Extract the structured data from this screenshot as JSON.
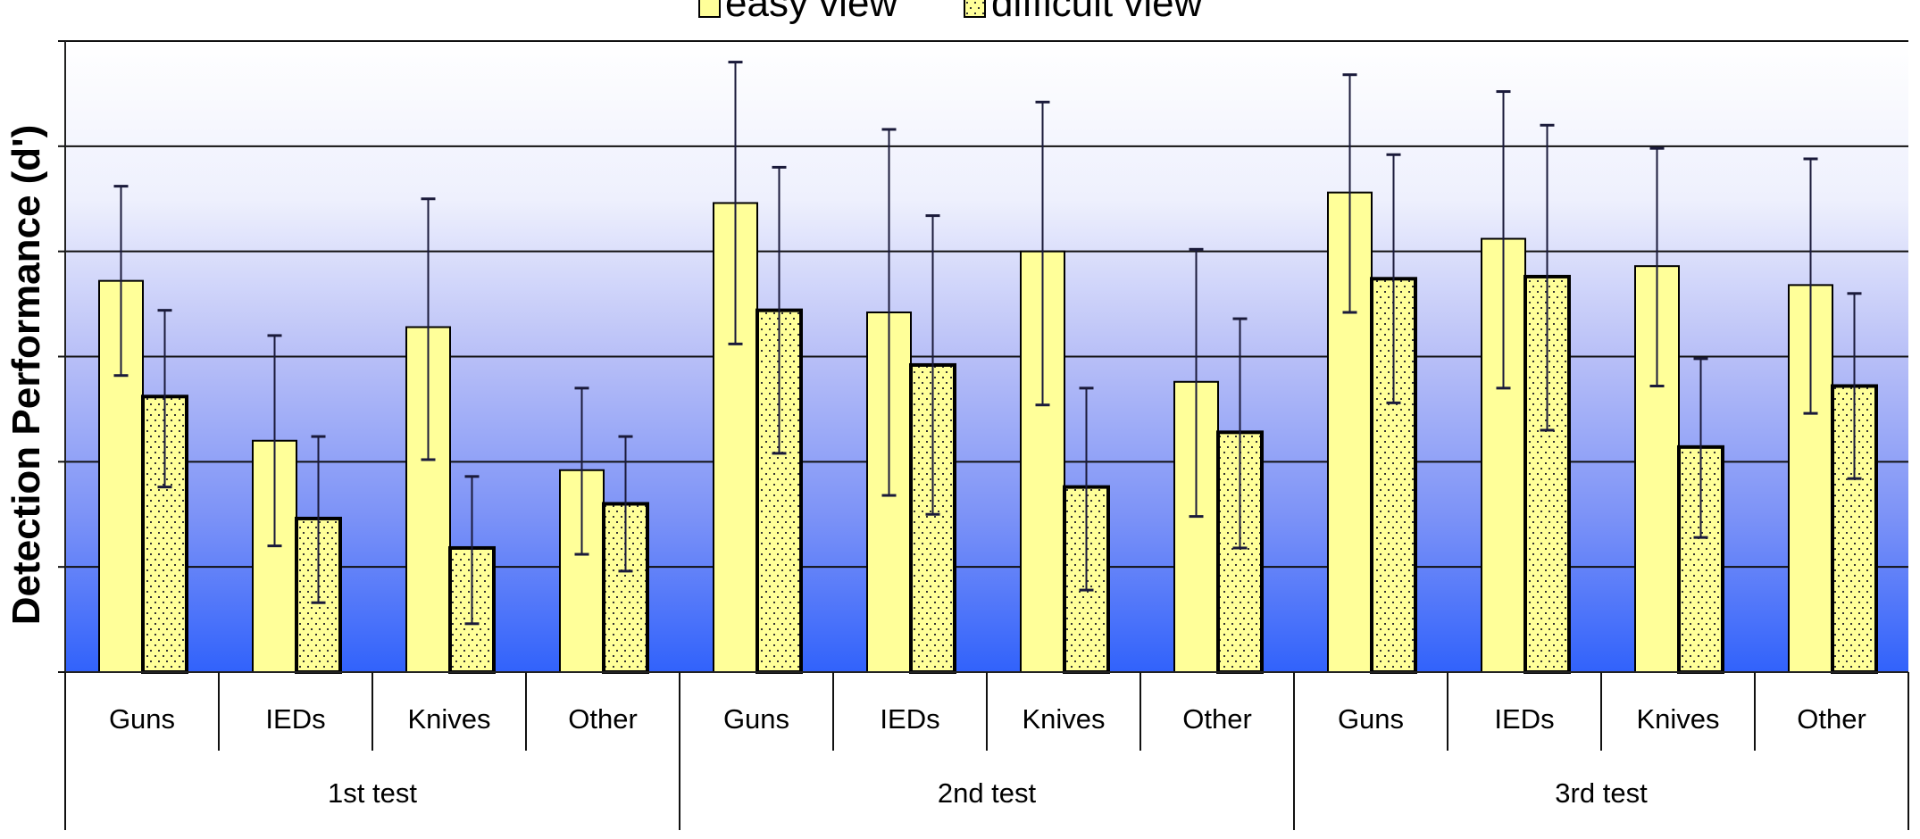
{
  "chart_data": {
    "type": "bar",
    "title": "",
    "xlabel": "",
    "ylabel": "Detection Performance (d')",
    "ylim": [
      0,
      3.0
    ],
    "y_tick_step": 0.5,
    "y_tick_labels_visible": false,
    "grid": true,
    "legend_position": "top",
    "legend": [
      "easy view",
      "difficult view"
    ],
    "groups": [
      {
        "label": "1st test",
        "categories": [
          "Guns",
          "IEDs",
          "Knives",
          "Other"
        ]
      },
      {
        "label": "2nd test",
        "categories": [
          "Guns",
          "IEDs",
          "Knives",
          "Other"
        ]
      },
      {
        "label": "3rd test",
        "categories": [
          "Guns",
          "IEDs",
          "Knives",
          "Other"
        ]
      }
    ],
    "categories": [
      "1st test / Guns",
      "1st test / IEDs",
      "1st test / Knives",
      "1st test / Other",
      "2nd test / Guns",
      "2nd test / IEDs",
      "2nd test / Knives",
      "2nd test / Other",
      "3rd test / Guns",
      "3rd test / IEDs",
      "3rd test / Knives",
      "3rd test / Other"
    ],
    "series": [
      {
        "name": "easy view",
        "color": "#ffff99",
        "pattern": "solid",
        "values": [
          1.86,
          1.1,
          1.64,
          0.96,
          2.23,
          1.71,
          2.0,
          1.38,
          2.28,
          2.06,
          1.93,
          1.84
        ],
        "error_upper": [
          2.31,
          1.6,
          2.25,
          1.35,
          2.9,
          2.58,
          2.71,
          2.01,
          2.84,
          2.76,
          2.49,
          2.44
        ],
        "error_lower": [
          1.41,
          0.6,
          1.01,
          0.56,
          1.56,
          0.84,
          1.27,
          0.74,
          1.71,
          1.35,
          1.36,
          1.23
        ]
      },
      {
        "name": "difficult view",
        "color": "#ffff99",
        "pattern": "dotted",
        "values": [
          1.31,
          0.73,
          0.59,
          0.8,
          1.72,
          1.46,
          0.88,
          1.14,
          1.87,
          1.88,
          1.07,
          1.36
        ],
        "error_upper": [
          1.72,
          1.12,
          0.93,
          1.12,
          2.4,
          2.17,
          1.35,
          1.68,
          2.46,
          2.6,
          1.49,
          1.8
        ],
        "error_lower": [
          0.88,
          0.33,
          0.23,
          0.48,
          1.04,
          0.75,
          0.39,
          0.59,
          1.28,
          1.15,
          0.64,
          0.92
        ]
      }
    ]
  },
  "legend": {
    "easy_label": "easy view",
    "difficult_label": "difficult view"
  },
  "axis": {
    "y_title": "Detection Performance (d')"
  },
  "colors": {
    "bar_fill": "#ffff99",
    "bar_stroke": "#000000",
    "dot_color": "#333333",
    "gradient_top": "#ffffff",
    "gradient_mid": "#b4bcf6",
    "gradient_bottom": "#3366ff",
    "gridline": "#000000",
    "error_bar": "#1a1a3a"
  }
}
